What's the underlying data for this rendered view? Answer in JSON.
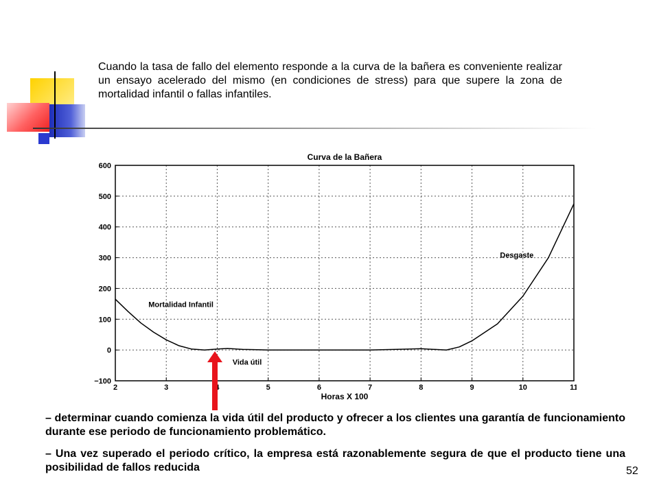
{
  "slide": {
    "intro_text": "Cuando la tasa de fallo del elemento responde a la curva de la bañera es conveniente realizar un ensayo acelerado del mismo (en condiciones de stress) para que supere la zona de mortalidad infantil o fallas infantiles.",
    "bullet_1": "– determinar cuando comienza la vida útil del producto y ofrecer a los clientes una garantía de funcionamiento durante ese periodo de  funcionamiento problemático.",
    "bullet_2": "– Una vez superado el periodo crítico, la empresa está razonablemente   segura de que el producto tiene una posibilidad de fallos reducida",
    "page_number": "52",
    "arrow_color": "#e8141c"
  },
  "chart_data": {
    "type": "line",
    "title": "Curva de la Bañera",
    "xlabel": "Horas X 100",
    "ylabel": "",
    "xlim": [
      2,
      11
    ],
    "ylim": [
      -100,
      600
    ],
    "x_ticks": [
      2,
      3,
      4,
      5,
      6,
      7,
      8,
      9,
      10,
      11
    ],
    "y_ticks": [
      -100,
      0,
      100,
      200,
      300,
      400,
      500,
      600
    ],
    "x_tick_labels": [
      "2",
      "3",
      "4",
      "5",
      "6",
      "7",
      "8",
      "9",
      "10",
      "11"
    ],
    "y_tick_labels": [
      "−100",
      "0",
      "100",
      "200",
      "300",
      "400",
      "500",
      "600"
    ],
    "grid": "dashed",
    "series": [
      {
        "x": [
          2,
          2.25,
          2.5,
          2.75,
          3,
          3.25,
          3.5,
          3.75,
          4,
          4.2,
          4.5,
          5,
          5.5,
          6,
          6.5,
          7,
          7.5,
          8,
          8.25,
          8.5,
          8.75,
          9,
          9.5,
          10,
          10.5,
          11
        ],
        "y": [
          165,
          125,
          88,
          58,
          33,
          14,
          3,
          0,
          3,
          5,
          2,
          0,
          0,
          0,
          0,
          0,
          2,
          4,
          2,
          0,
          10,
          30,
          85,
          175,
          300,
          475
        ]
      }
    ],
    "annotations": [
      {
        "text": "Mortalidad Infantil",
        "x": 2.65,
        "y": 140
      },
      {
        "text": "Vida útil",
        "x": 4.3,
        "y": -48
      },
      {
        "text": "Desgaste",
        "x": 9.55,
        "y": 300
      }
    ]
  }
}
